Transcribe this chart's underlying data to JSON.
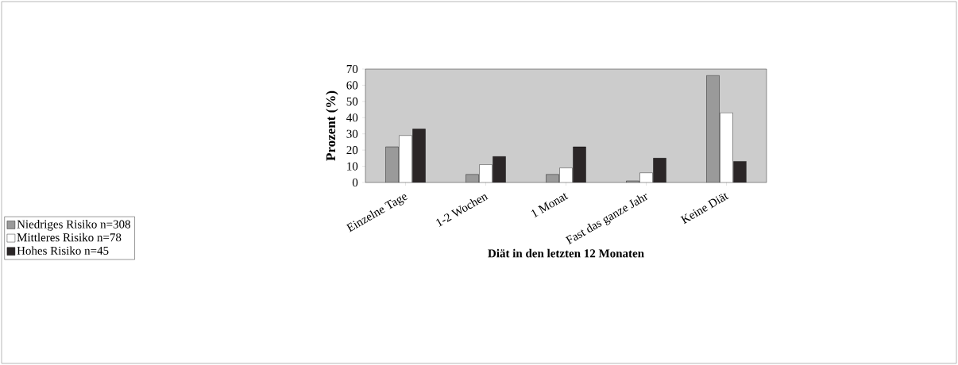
{
  "chart_data": {
    "type": "bar",
    "xlabel": "Diät in den letzten 12 Monaten",
    "ylabel": "Prozent  (%)",
    "categories": [
      "Einzelne Tage",
      "1-2 Wochen",
      "1 Monat",
      "Fast das ganze Jahr",
      "Keine Diät"
    ],
    "series": [
      {
        "name": "Niedriges Risiko n=308",
        "color": "#9a9a9a",
        "values": [
          22,
          5,
          5,
          1,
          66
        ]
      },
      {
        "name": "Mittleres Risiko n=78",
        "color": "#ffffff",
        "values": [
          29,
          11,
          9,
          6,
          43
        ]
      },
      {
        "name": "Hohes Risiko n=45",
        "color": "#2b2627",
        "values": [
          33,
          16,
          22,
          15,
          13
        ]
      }
    ],
    "ylim": [
      0,
      70
    ],
    "yticks": [
      0,
      10,
      20,
      30,
      40,
      50,
      60,
      70
    ],
    "grid": false,
    "legend": "bottom left"
  }
}
